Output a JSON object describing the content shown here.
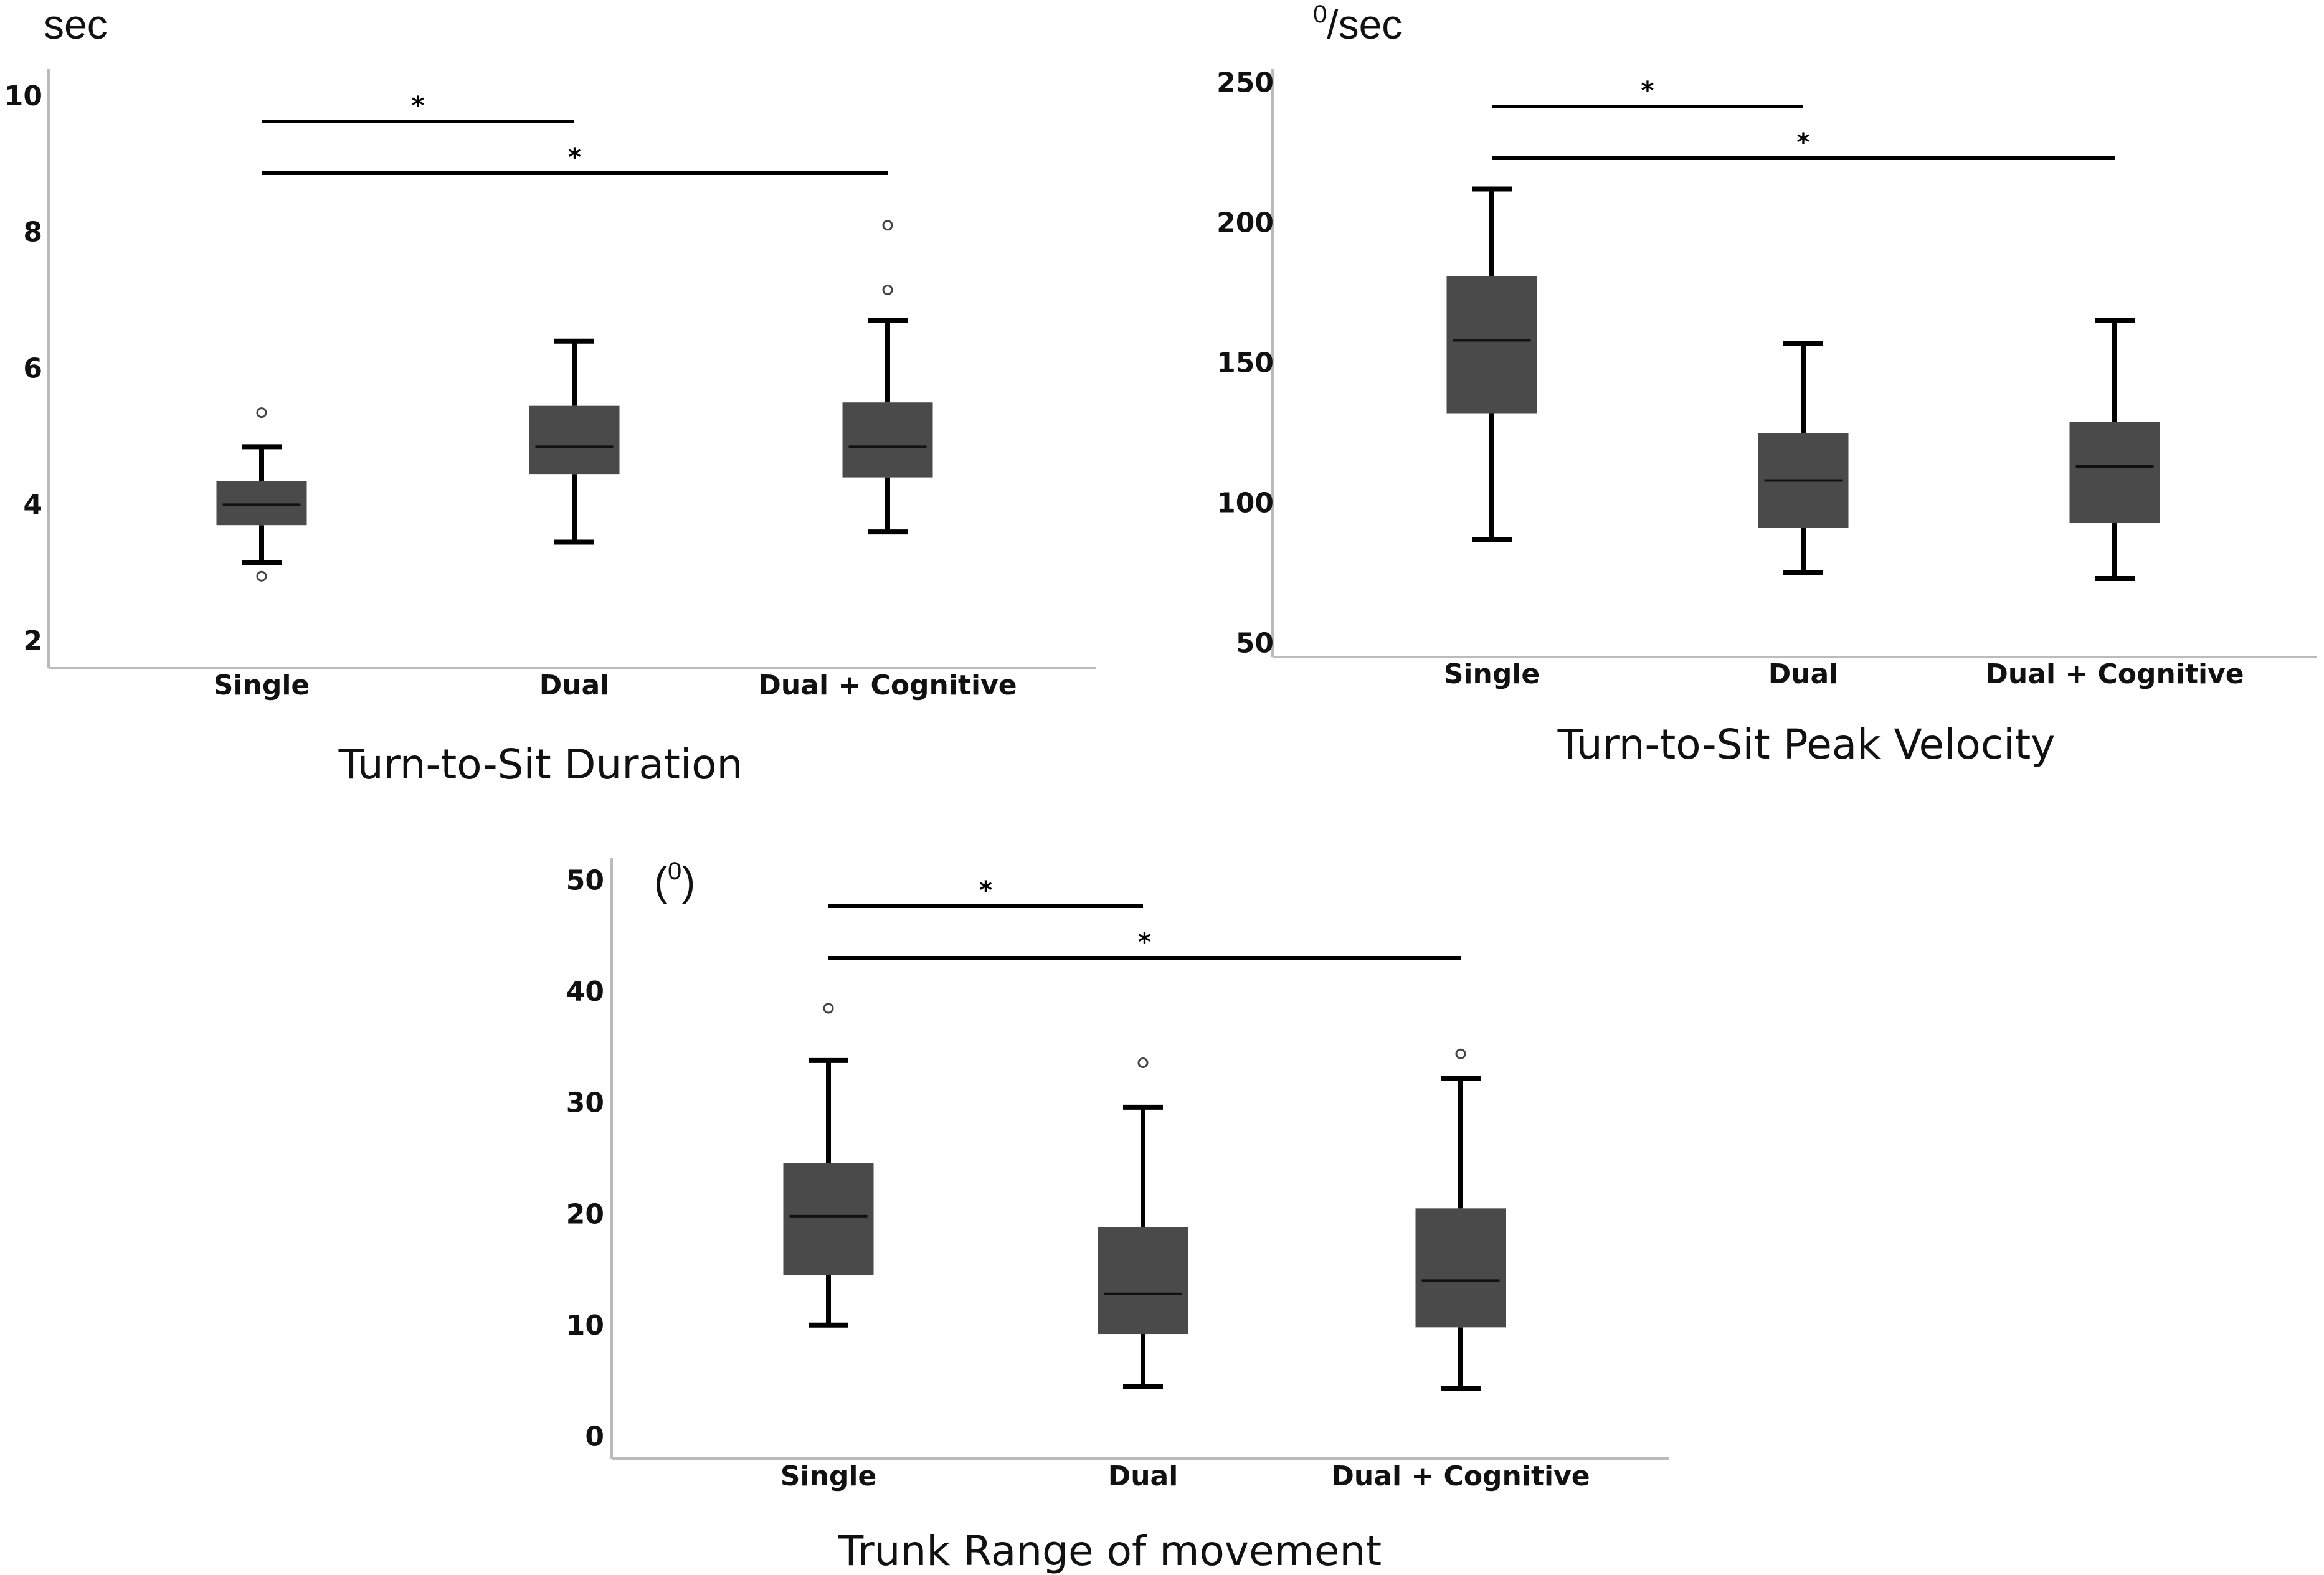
{
  "chart_data": [
    {
      "type": "box",
      "title": "Turn-to-Sit Duration",
      "unit_label": "sec",
      "unit_sup": "",
      "categories": [
        "Single",
        "Dual",
        "Dual + Cognitive"
      ],
      "ylim": [
        1.6,
        10.4
      ],
      "yticks": [
        2,
        4,
        6,
        8,
        10
      ],
      "boxes": [
        {
          "whisker_low": 3.15,
          "q1": 3.7,
          "median": 4.0,
          "q3": 4.35,
          "whisker_high": 4.85,
          "outliers": [
            2.95,
            5.35
          ]
        },
        {
          "whisker_low": 3.45,
          "q1": 4.45,
          "median": 4.85,
          "q3": 5.45,
          "whisker_high": 6.4,
          "outliers": []
        },
        {
          "whisker_low": 3.6,
          "q1": 4.4,
          "median": 4.85,
          "q3": 5.5,
          "whisker_high": 6.7,
          "outliers": [
            7.15,
            8.1
          ]
        }
      ],
      "significance": [
        {
          "from": "Single",
          "to": "Dual",
          "label": "*"
        },
        {
          "from": "Single",
          "to": "Dual + Cognitive",
          "label": "*"
        }
      ]
    },
    {
      "type": "box",
      "title": "Turn-to-Sit Peak Velocity",
      "unit_label": "/sec",
      "unit_sup": "0",
      "categories": [
        "Single",
        "Dual",
        "Dual + Cognitive"
      ],
      "ylim": [
        45,
        255
      ],
      "yticks": [
        50,
        100,
        150,
        200,
        250
      ],
      "boxes": [
        {
          "whisker_low": 87,
          "q1": 132,
          "median": 158,
          "q3": 181,
          "whisker_high": 212,
          "outliers": []
        },
        {
          "whisker_low": 75,
          "q1": 91,
          "median": 108,
          "q3": 125,
          "whisker_high": 157,
          "outliers": []
        },
        {
          "whisker_low": 73,
          "q1": 93,
          "median": 113,
          "q3": 129,
          "whisker_high": 165,
          "outliers": []
        }
      ],
      "significance": [
        {
          "from": "Single",
          "to": "Dual",
          "label": "*"
        },
        {
          "from": "Single",
          "to": "Dual + Cognitive",
          "label": "*"
        }
      ]
    },
    {
      "type": "box",
      "title": "Trunk Range of movement",
      "unit_label": ")",
      "unit_prefix": "(",
      "unit_sup": "0",
      "categories": [
        "Single",
        "Dual",
        "Dual + Cognitive"
      ],
      "ylim": [
        -2,
        52
      ],
      "yticks": [
        0,
        10,
        20,
        30,
        40,
        50
      ],
      "boxes": [
        {
          "whisker_low": 10,
          "q1": 14.5,
          "median": 19.8,
          "q3": 24.6,
          "whisker_high": 33.8,
          "outliers": [
            38.5
          ]
        },
        {
          "whisker_low": 4.5,
          "q1": 9.2,
          "median": 12.8,
          "q3": 18.8,
          "whisker_high": 29.6,
          "outliers": [
            33.6
          ]
        },
        {
          "whisker_low": 4.3,
          "q1": 9.8,
          "median": 14.0,
          "q3": 20.5,
          "whisker_high": 32.2,
          "outliers": [
            34.4
          ]
        }
      ],
      "significance": [
        {
          "from": "Single",
          "to": "Dual",
          "label": "*"
        },
        {
          "from": "Single",
          "to": "Dual + Cognitive",
          "label": "*"
        }
      ]
    }
  ]
}
